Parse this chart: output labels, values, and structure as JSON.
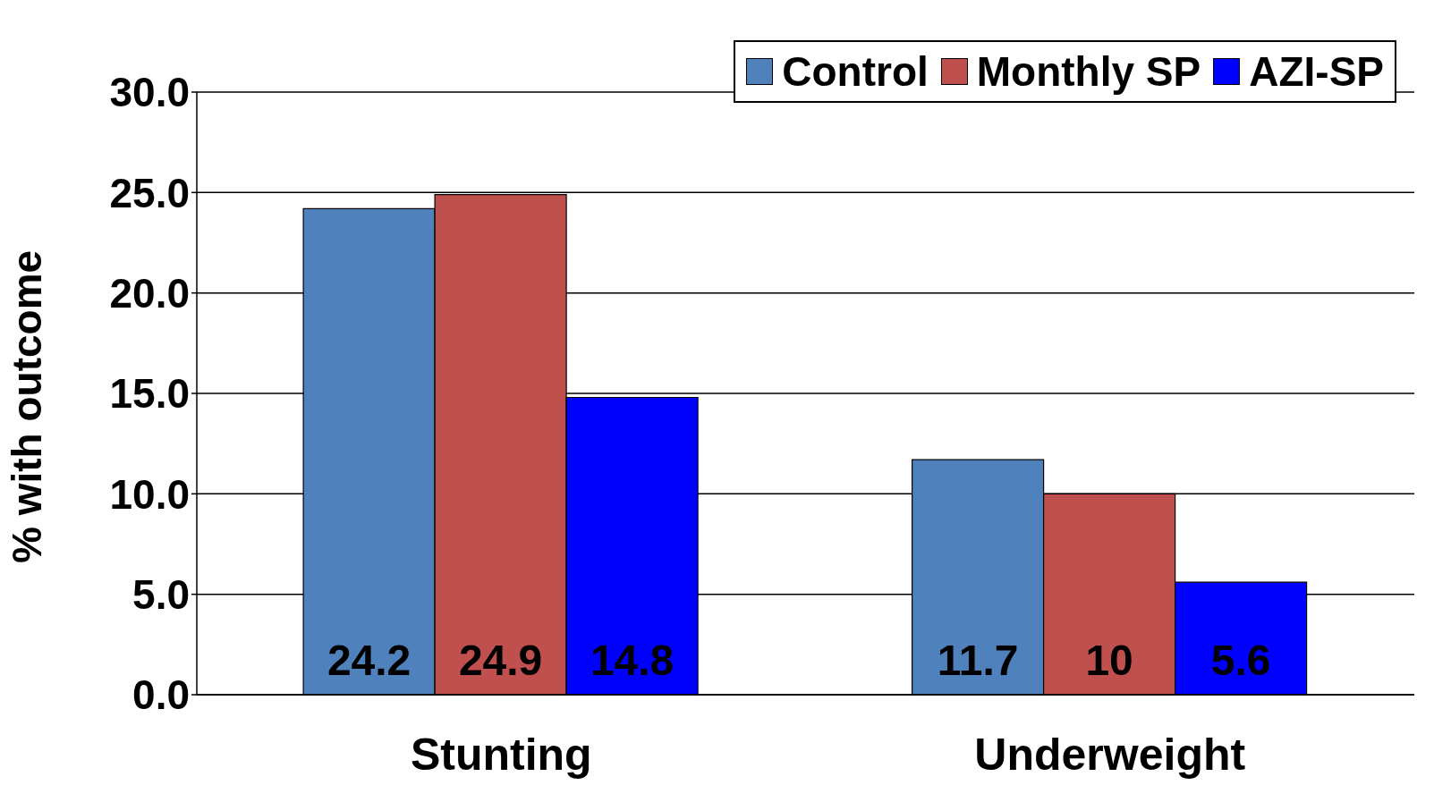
{
  "chart_data": {
    "type": "bar",
    "ylabel": "% with outcome",
    "categories": [
      "Stunting",
      "Underweight"
    ],
    "series": [
      {
        "name": "Control",
        "color": "#4f81bd",
        "values": [
          24.2,
          11.7
        ]
      },
      {
        "name": "Monthly SP",
        "color": "#c0504d",
        "values": [
          24.9,
          10
        ]
      },
      {
        "name": "AZI-SP",
        "color": "#0000ff",
        "values": [
          14.8,
          5.6
        ]
      }
    ],
    "ylim": [
      0,
      30
    ],
    "yticks": [
      {
        "value": 0,
        "label": "0.0"
      },
      {
        "value": 5,
        "label": "5.0"
      },
      {
        "value": 10,
        "label": "10.0"
      },
      {
        "value": 15,
        "label": "15.0"
      },
      {
        "value": 20,
        "label": "20.0"
      },
      {
        "value": 25,
        "label": "25.0"
      },
      {
        "value": 30,
        "label": "30.0"
      }
    ],
    "grid": "y",
    "legend": "top right",
    "data_labels": true
  }
}
